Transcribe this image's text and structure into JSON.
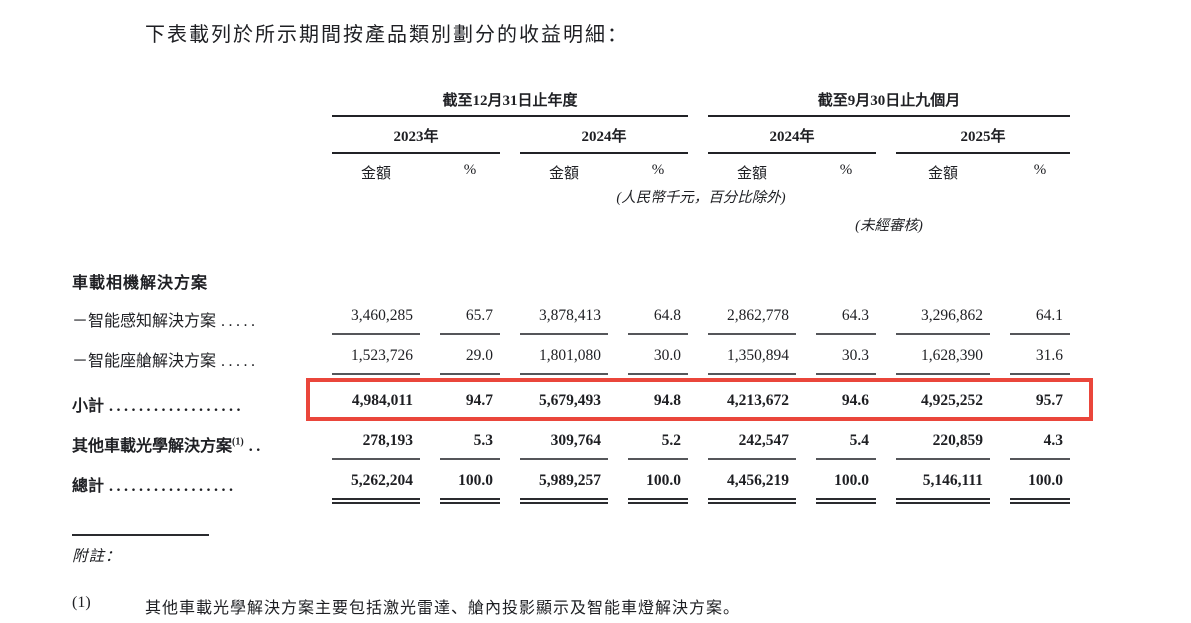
{
  "page": {
    "intro": "下表載列於所示期間按產品類別劃分的收益明細："
  },
  "table": {
    "groups": [
      {
        "label": "截至12月31日止年度"
      },
      {
        "label": "截至9月30日止九個月"
      }
    ],
    "years": [
      {
        "label": "2023年"
      },
      {
        "label": "2024年"
      },
      {
        "label": "2024年"
      },
      {
        "label": "2025年"
      }
    ],
    "col_headers": {
      "amount": "金額",
      "percent": "%"
    },
    "unit_note": "(人民幣千元，百分比除外)",
    "unaudited_note": "(未經審核)",
    "section_header": "車載相機解決方案",
    "rows": [
      {
        "label": "－智能感知解決方案",
        "dots": ".....",
        "values": [
          "3,460,285",
          "65.7",
          "3,878,413",
          "64.8",
          "2,862,778",
          "64.3",
          "3,296,862",
          "64.1"
        ]
      },
      {
        "label": "－智能座艙解決方案",
        "dots": ".....",
        "values": [
          "1,523,726",
          "29.0",
          "1,801,080",
          "30.0",
          "1,350,894",
          "30.3",
          "1,628,390",
          "31.6"
        ]
      },
      {
        "label": "小計",
        "dots": "..................",
        "highlighted": true,
        "values": [
          "4,984,011",
          "94.7",
          "5,679,493",
          "94.8",
          "4,213,672",
          "94.6",
          "4,925,252",
          "95.7"
        ]
      },
      {
        "label": "其他車載光學解決方案",
        "note_ref": "(1)",
        "dots": "..",
        "values": [
          "278,193",
          "5.3",
          "309,764",
          "5.2",
          "242,547",
          "5.4",
          "220,859",
          "4.3"
        ]
      },
      {
        "label": "總計",
        "dots": ".................",
        "values": [
          "5,262,204",
          "100.0",
          "5,989,257",
          "100.0",
          "4,456,219",
          "100.0",
          "5,146,111",
          "100.0"
        ]
      }
    ],
    "highlight_color": "#ea463b"
  },
  "footnotes": {
    "heading": "附註：",
    "items": [
      {
        "num": "(1)",
        "text": "其他車載光學解決方案主要包括激光雷達、艙內投影顯示及智能車燈解決方案。"
      }
    ]
  }
}
